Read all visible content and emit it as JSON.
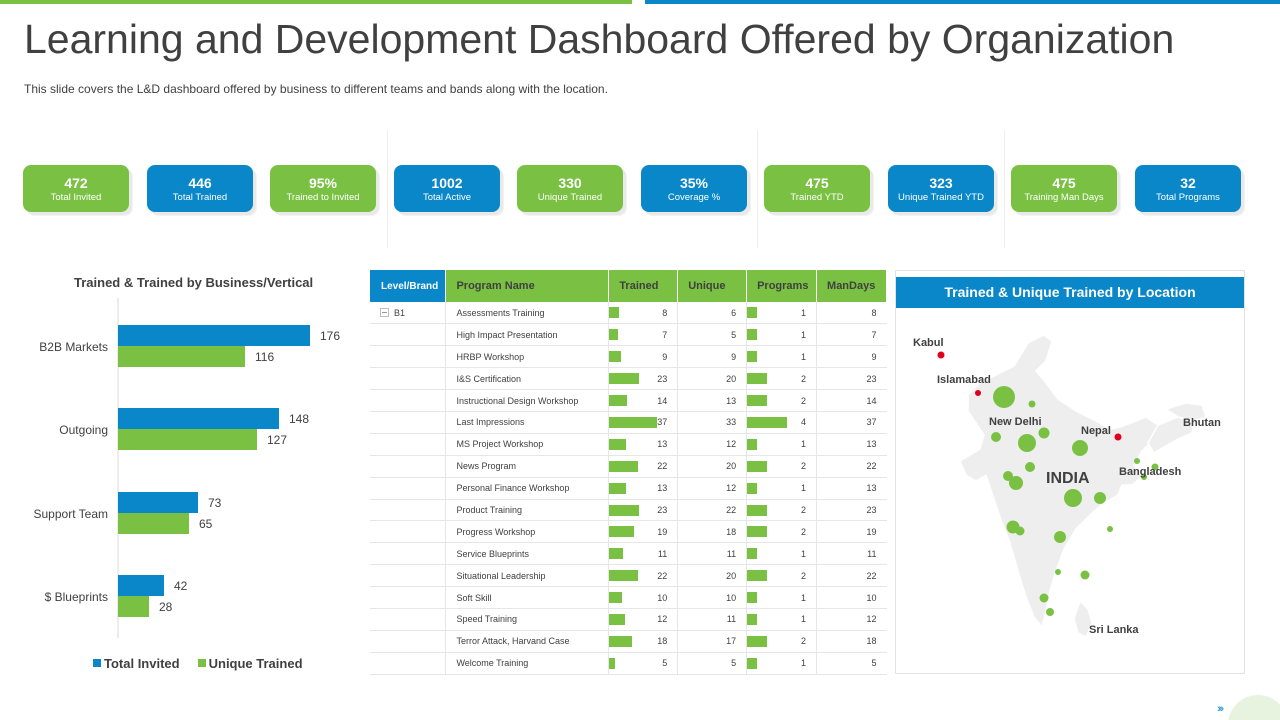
{
  "title": "Learning and Development Dashboard Offered by Organization",
  "subtitle": "This slide covers  the L&D dashboard offered  by business to different  teams and bands along with the location.",
  "colors": {
    "green": "#7ac143",
    "blue": "#0a87c8",
    "red": "#e0001b"
  },
  "kpis": [
    {
      "value": "472",
      "label": "Total Invited",
      "color": "green"
    },
    {
      "value": "446",
      "label": "Total Trained",
      "color": "blue"
    },
    {
      "value": "95%",
      "label": "Trained  to Invited",
      "color": "green"
    },
    {
      "value": "1002",
      "label": "Total Active",
      "color": "blue"
    },
    {
      "value": "330",
      "label": "Unique Trained",
      "color": "green"
    },
    {
      "value": "35%",
      "label": "Coverage %",
      "color": "blue"
    },
    {
      "value": "475",
      "label": "Trained  YTD",
      "color": "green"
    },
    {
      "value": "323",
      "label": "Unique Trained  YTD",
      "color": "blue"
    },
    {
      "value": "475",
      "label": "Training Man Days",
      "color": "green"
    },
    {
      "value": "32",
      "label": "Total Programs",
      "color": "blue"
    }
  ],
  "chart_data": {
    "type": "bar",
    "orientation": "horizontal",
    "title": "Trained & Trained by Business/Vertical",
    "categories": [
      "B2B Markets",
      "Outgoing",
      "Support Team",
      "$ Blueprints"
    ],
    "series": [
      {
        "name": "Total Invited",
        "values": [
          176,
          148,
          73,
          42
        ],
        "color": "#0a87c8"
      },
      {
        "name": "Unique Trained",
        "values": [
          116,
          127,
          65,
          28
        ],
        "color": "#7ac143"
      }
    ],
    "xlim": [
      0,
      200
    ],
    "legend": "bottom"
  },
  "table": {
    "headers": [
      "Level/Brand",
      "Program Name",
      "Trained",
      "Unique",
      "Programs",
      "ManDays"
    ],
    "level_label": "B1",
    "rows": [
      {
        "name": "Assessments Training",
        "trained": 8,
        "unique": 6,
        "programs": 1,
        "mandays": 8
      },
      {
        "name": "High Impact Presentation",
        "trained": 7,
        "unique": 5,
        "programs": 1,
        "mandays": 7
      },
      {
        "name": "HRBP Workshop",
        "trained": 9,
        "unique": 9,
        "programs": 1,
        "mandays": 9
      },
      {
        "name": "I&S Certification",
        "trained": 23,
        "unique": 20,
        "programs": 2,
        "mandays": 23
      },
      {
        "name": "Instructional Design Workshop",
        "trained": 14,
        "unique": 13,
        "programs": 2,
        "mandays": 14
      },
      {
        "name": "Last Impressions",
        "trained": 37,
        "unique": 33,
        "programs": 4,
        "mandays": 37
      },
      {
        "name": "MS Project Workshop",
        "trained": 13,
        "unique": 12,
        "programs": 1,
        "mandays": 13
      },
      {
        "name": "News Program",
        "trained": 22,
        "unique": 20,
        "programs": 2,
        "mandays": 22
      },
      {
        "name": "Personal Finance Workshop",
        "trained": 13,
        "unique": 12,
        "programs": 1,
        "mandays": 13
      },
      {
        "name": "Product Training",
        "trained": 23,
        "unique": 22,
        "programs": 2,
        "mandays": 23
      },
      {
        "name": "Progress Workshop",
        "trained": 19,
        "unique": 18,
        "programs": 2,
        "mandays": 19
      },
      {
        "name": "Service Blueprints",
        "trained": 11,
        "unique": 11,
        "programs": 1,
        "mandays": 11
      },
      {
        "name": "Situational Leadership",
        "trained": 22,
        "unique": 20,
        "programs": 2,
        "mandays": 22
      },
      {
        "name": "Soft Skill",
        "trained": 10,
        "unique": 10,
        "programs": 1,
        "mandays": 10
      },
      {
        "name": "Speed Training",
        "trained": 12,
        "unique": 11,
        "programs": 1,
        "mandays": 12
      },
      {
        "name": "Terror Attack, Harvand Case",
        "trained": 18,
        "unique": 17,
        "programs": 2,
        "mandays": 18
      },
      {
        "name": "Welcome Training",
        "trained": 5,
        "unique": 5,
        "programs": 1,
        "mandays": 5
      }
    ]
  },
  "map": {
    "title": "Trained & Unique Trained by Location",
    "labels": {
      "kabul": "Kabul",
      "islamabad": "Islamabad",
      "new_delhi": "New Delhi",
      "nepal": "Nepal",
      "bhutan": "Bhutan",
      "india": "INDIA",
      "bangladesh": "Bangladesh",
      "sri_lanka": "Sri Lanka"
    }
  }
}
